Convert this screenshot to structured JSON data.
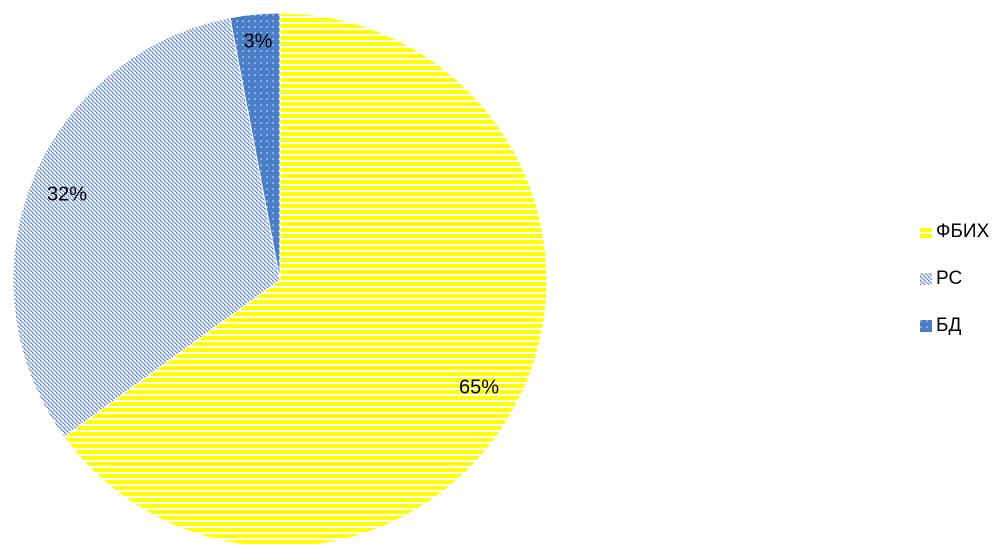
{
  "chart_data": {
    "type": "pie",
    "title": "",
    "categories": [
      "ФБИХ",
      "РС",
      "БД"
    ],
    "values": [
      65,
      32,
      3
    ],
    "data_labels": [
      "65%",
      "32%",
      "3%"
    ],
    "start_angle_deg": 0,
    "direction": "clockwise",
    "legend": {
      "position": "right",
      "entries": [
        "ФБИХ",
        "РС",
        "БД"
      ]
    },
    "series_style": [
      {
        "name": "ФБИХ",
        "fill": "#ffff00",
        "pattern": "horizontal-stripes",
        "pattern_color": "#ffffff"
      },
      {
        "name": "РС",
        "fill": "#4472c4",
        "pattern": "diagonal-dots",
        "pattern_color": "#ffffff"
      },
      {
        "name": "БД",
        "fill": "#4a7ec7",
        "pattern": "dotted",
        "pattern_color": "#ffffff"
      }
    ]
  }
}
